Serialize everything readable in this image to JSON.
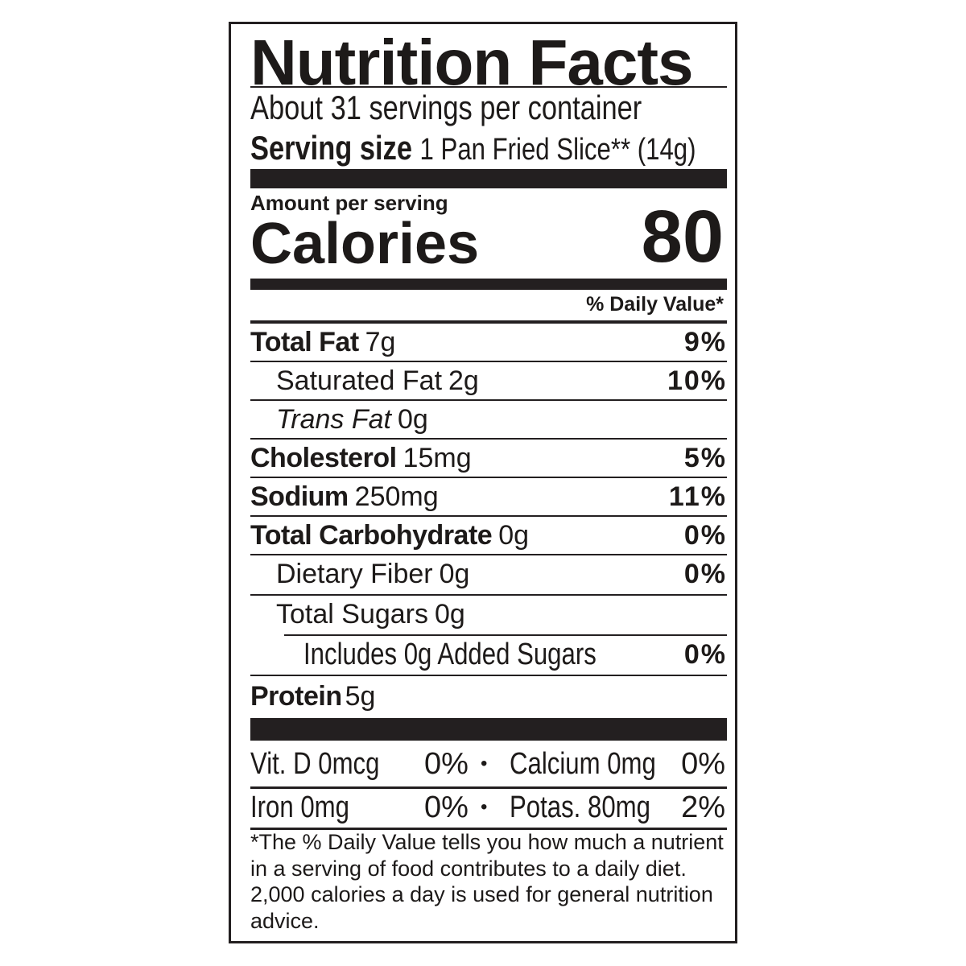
{
  "title": "Nutrition Facts",
  "servings_per_container": "About 31 servings per container",
  "serving_size_label": "Serving size",
  "serving_size_value": "1 Pan Fried Slice** (14g)",
  "amount_per_serving": "Amount per serving",
  "calories_label": "Calories",
  "calories_value": "80",
  "daily_value_header": "% Daily Value*",
  "nutrients": [
    {
      "name": "Total Fat",
      "amount": "7g",
      "dv": "9%"
    },
    {
      "name": "Saturated Fat",
      "amount": "2g",
      "dv": "10%"
    },
    {
      "name": "Trans Fat",
      "amount": "0g",
      "dv": ""
    },
    {
      "name": "Cholesterol",
      "amount": "15mg",
      "dv": "5%"
    },
    {
      "name": "Sodium",
      "amount": "250mg",
      "dv": "11%"
    },
    {
      "name": "Total Carbohydrate",
      "amount": "0g",
      "dv": "0%"
    },
    {
      "name": "Dietary Fiber",
      "amount": "0g",
      "dv": "0%"
    },
    {
      "name": "Total Sugars",
      "amount": "0g",
      "dv": ""
    },
    {
      "name": "Includes 0g Added Sugars",
      "amount": "",
      "dv": "0%"
    },
    {
      "name": "Protein",
      "amount": "5g",
      "dv": ""
    }
  ],
  "micronutrients": [
    {
      "left": "Vit. D 0mcg",
      "left_dv": "0%",
      "sep": "•",
      "right": "Calcium 0mg",
      "right_dv": "0%"
    },
    {
      "left": "Iron 0mg",
      "left_dv": "0%",
      "sep": "•",
      "right": "Potas. 80mg",
      "right_dv": "2%"
    }
  ],
  "footnote": "*The % Daily Value tells you how much a nutrient in a serving of food contributes to a daily diet. 2,000 calories a day is used for general nutrition advice."
}
